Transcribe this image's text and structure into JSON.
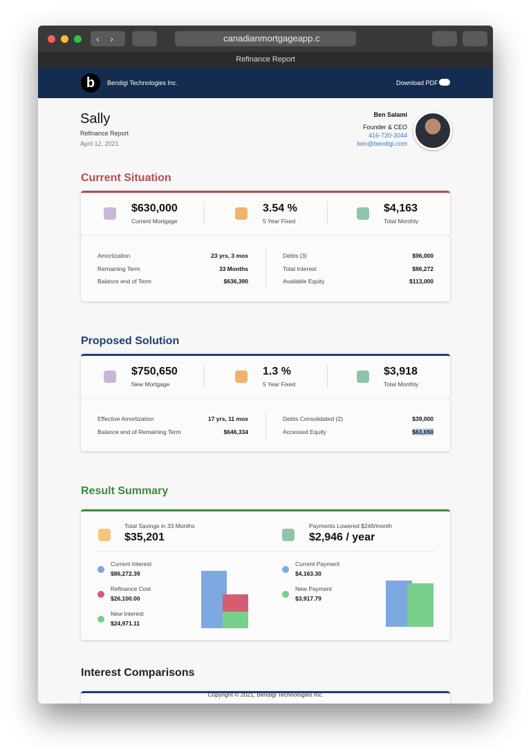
{
  "browser": {
    "url": "canadianmortgageapp.c",
    "tab": "Refinance Report"
  },
  "nav": {
    "company": "Bendigi Technologies Inc.",
    "download": "Download PDF"
  },
  "client": {
    "name": "Sally",
    "report": "Refinance Report",
    "date": "April 12, 2021"
  },
  "advisor": {
    "name": "Ben Salami",
    "title": "Founder & CEO",
    "phone": "416-720-3044",
    "email": "ben@bendigi.com"
  },
  "current": {
    "heading": "Current Situation",
    "stats": [
      {
        "value": "$630,000",
        "label": "Current Mortgage"
      },
      {
        "value": "3.54 %",
        "label": "5 Year Fixed"
      },
      {
        "value": "$4,163",
        "label": "Total Monthly"
      }
    ],
    "details_left": [
      {
        "label": "Amortization",
        "value": "23 yrs, 3 mos"
      },
      {
        "label": "Remaining Term",
        "value": "33 Months"
      },
      {
        "label": "Balance end of Term",
        "value": "$636,390"
      }
    ],
    "details_right": [
      {
        "label": "Debts (3)",
        "value": "$96,000"
      },
      {
        "label": "Total Interest",
        "value": "$86,272"
      },
      {
        "label": "Available Equity",
        "value": "$113,000"
      }
    ]
  },
  "proposed": {
    "heading": "Proposed Solution",
    "stats": [
      {
        "value": "$750,650",
        "label": "New Mortgage"
      },
      {
        "value": "1.3 %",
        "label": "5 Year Fixed"
      },
      {
        "value": "$3,918",
        "label": "Total Monthly"
      }
    ],
    "details_left": [
      {
        "label": "Effective Amortization",
        "value": "17 yrs, 11 mos"
      },
      {
        "label": "Balance end of Remaining Term",
        "value": "$646,334"
      }
    ],
    "details_right": [
      {
        "label": "Debts Consolidated (2)",
        "value": "$39,000"
      },
      {
        "label": "Accessed Equity",
        "value": "$63,650"
      }
    ]
  },
  "summary": {
    "heading": "Result Summary",
    "left": {
      "caption": "Total Savings in 33 Months",
      "value": "$35,201",
      "items": [
        {
          "label": "Current Interest",
          "value": "$86,272.39"
        },
        {
          "label": "Refinance Cost",
          "value": "$26,100.00"
        },
        {
          "label": "New Interest",
          "value": "$24,971.11"
        }
      ]
    },
    "right": {
      "caption": "Payments Lowered $246/month",
      "value": "$2,946 / year",
      "items": [
        {
          "label": "Current Payment",
          "value": "$4,163.30"
        },
        {
          "label": "New Payment",
          "value": "$3,917.79"
        }
      ]
    }
  },
  "comparisons": {
    "heading": "Interest Comparisons"
  },
  "footer": "Copyright © 2021, Bendigi Technologies Inc."
}
